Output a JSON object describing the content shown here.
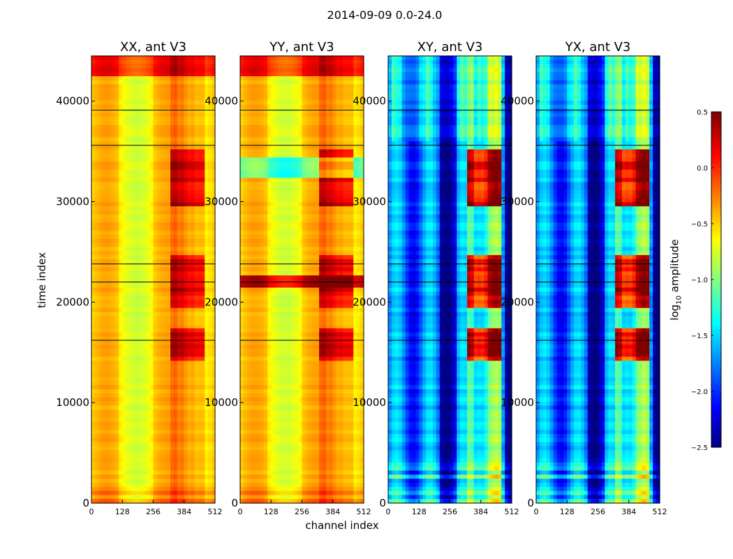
{
  "suptitle": "2014-09-09 0.0-24.0",
  "chart_data": {
    "type": "heatmap",
    "xlabel": "channel index",
    "ylabel": "time index",
    "xlim": [
      0,
      512
    ],
    "ylim": [
      0,
      44500
    ],
    "xticks": [
      0,
      128,
      256,
      384,
      512
    ],
    "yticks": [
      0,
      10000,
      20000,
      30000,
      40000
    ],
    "panels": [
      {
        "title": "XX, ant V3",
        "kind": "auto"
      },
      {
        "title": "YY, ant V3",
        "kind": "auto"
      },
      {
        "title": "XY, ant V3",
        "kind": "cross"
      },
      {
        "title": "YX, ant V3",
        "kind": "cross"
      }
    ],
    "colorbar": {
      "label": "log10 amplitude",
      "label_main": "log",
      "label_sub": "10",
      "label_rest": " amplitude",
      "vmin": -2.5,
      "vmax": 0.5,
      "ticks": [
        "0.5",
        "0.0",
        "−0.5",
        "−1.0",
        "−1.5",
        "−2.0",
        "−2.5"
      ],
      "tick_values": [
        0.5,
        0.0,
        -0.5,
        -1.0,
        -1.5,
        -2.0,
        -2.5
      ],
      "colormap": "jet"
    },
    "auto_base_level": -0.5,
    "cross_base_level": -1.8,
    "rfi_channel_range": [
      330,
      470
    ],
    "rfi_time_bands": [
      [
        14000,
        17500
      ],
      [
        19500,
        24500
      ],
      [
        29500,
        35000
      ]
    ],
    "dark_flag_rows": [
      39100,
      35600,
      23800,
      22000,
      16200
    ]
  }
}
